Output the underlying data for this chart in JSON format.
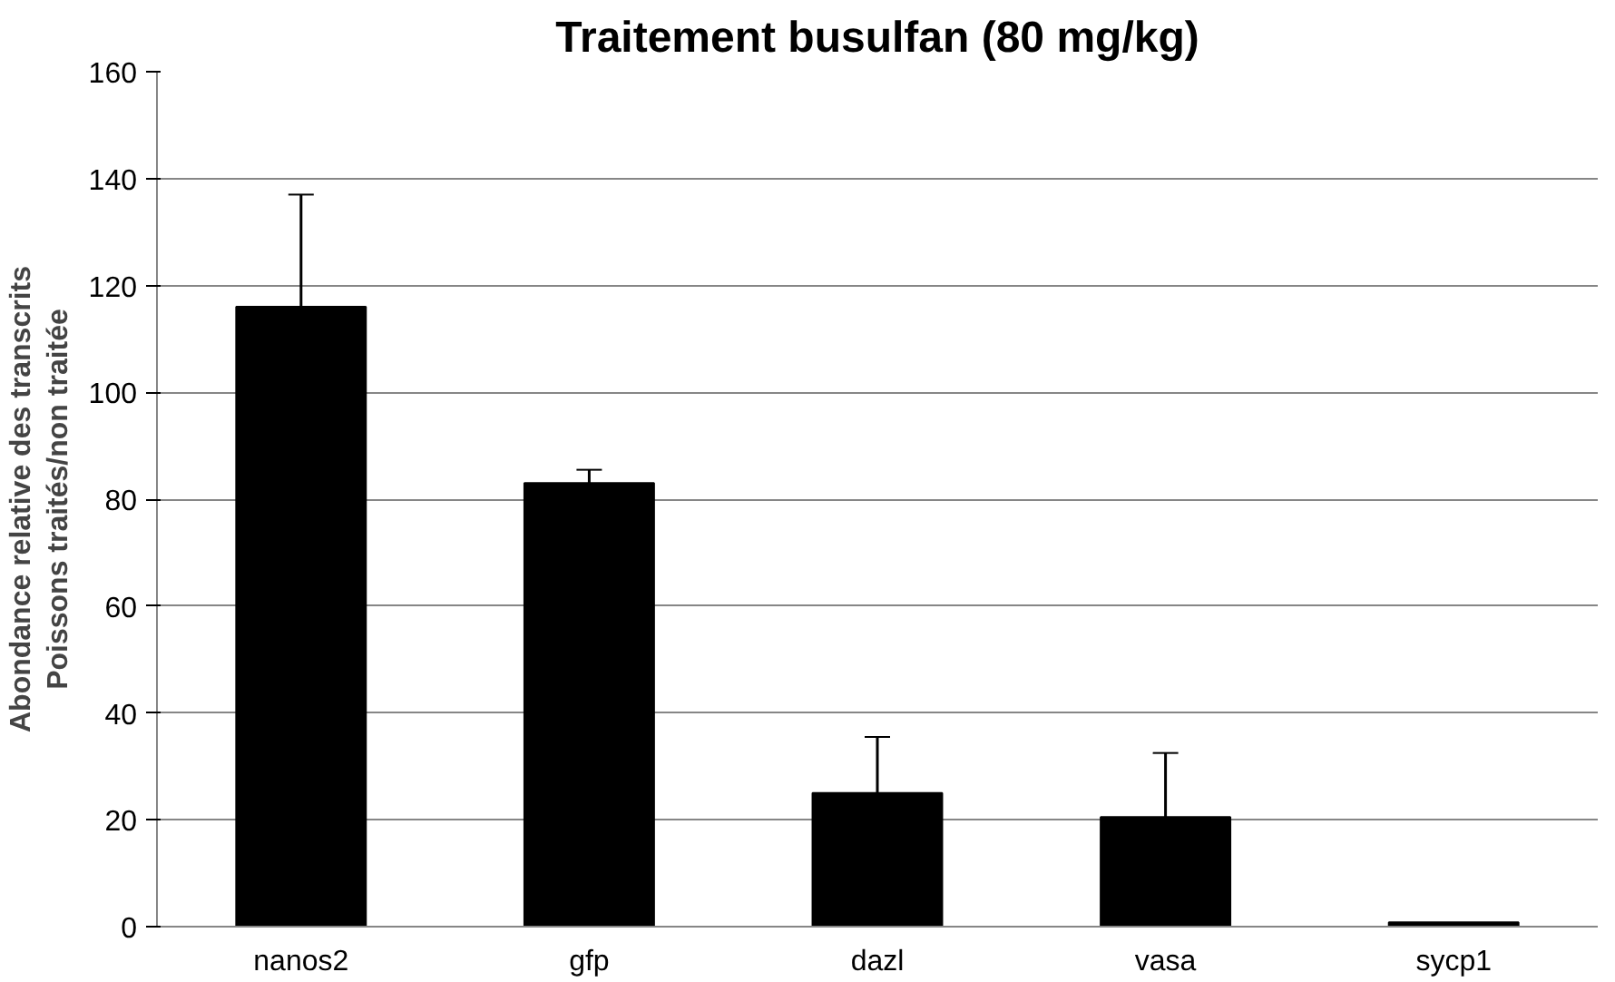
{
  "chart_data": {
    "type": "bar",
    "title": "Traitement busulfan (80 mg/kg)",
    "ylabel": "Abondance relative des transcrits\nPoissons traités/non traitée",
    "categories": [
      "nanos2",
      "gfp",
      "dazl",
      "vasa",
      "sycp1"
    ],
    "values": [
      116,
      83,
      25,
      20.5,
      0.8
    ],
    "errors": [
      21,
      2.5,
      10.5,
      12,
      null
    ],
    "color": "#000000",
    "ylim": [
      0,
      160
    ],
    "yticks": [
      0,
      20,
      40,
      60,
      80,
      100,
      120,
      140,
      160
    ],
    "grid": "y"
  }
}
